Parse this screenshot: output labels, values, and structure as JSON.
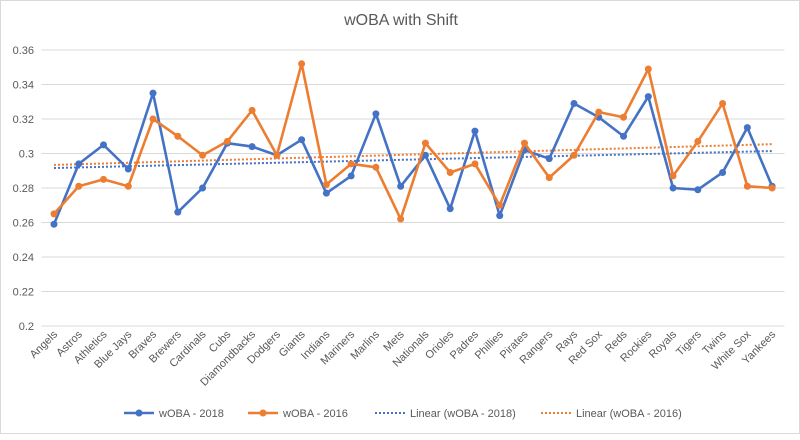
{
  "chart_data": {
    "type": "line",
    "title": "wOBA with Shift",
    "xlabel": "",
    "ylabel": "",
    "ylim": [
      0.2,
      0.36
    ],
    "yticks": [
      "0.2",
      "0.22",
      "0.24",
      "0.26",
      "0.28",
      "0.3",
      "0.32",
      "0.34",
      "0.36"
    ],
    "grid": true,
    "legend_position": "bottom",
    "categories": [
      "Angels",
      "Astros",
      "Athletics",
      "Blue Jays",
      "Braves",
      "Brewers",
      "Cardinals",
      "Cubs",
      "Diamondbacks",
      "Dodgers",
      "Giants",
      "Indians",
      "Mariners",
      "Marlins",
      "Mets",
      "Nationals",
      "Orioles",
      "Padres",
      "Phillies",
      "Pirates",
      "Rangers",
      "Rays",
      "Red Sox",
      "Reds",
      "Rockies",
      "Royals",
      "Tigers",
      "Twins",
      "White Sox",
      "Yankees"
    ],
    "series": [
      {
        "name": "wOBA - 2018",
        "color": "#4472c4",
        "values": [
          0.259,
          0.294,
          0.305,
          0.291,
          0.335,
          0.266,
          0.28,
          0.306,
          0.304,
          0.299,
          0.308,
          0.277,
          0.287,
          0.323,
          0.281,
          0.299,
          0.268,
          0.313,
          0.264,
          0.302,
          0.297,
          0.329,
          0.321,
          0.31,
          0.333,
          0.28,
          0.279,
          0.289,
          0.315,
          0.281
        ]
      },
      {
        "name": "wOBA - 2016",
        "color": "#ed7d31",
        "values": [
          0.265,
          0.281,
          0.285,
          0.281,
          0.32,
          0.31,
          0.299,
          0.307,
          0.325,
          0.299,
          0.352,
          0.282,
          0.294,
          0.292,
          0.262,
          0.306,
          0.289,
          0.294,
          0.27,
          0.306,
          0.286,
          0.299,
          0.324,
          0.321,
          0.349,
          0.287,
          0.307,
          0.329,
          0.281,
          0.28
        ]
      }
    ],
    "trendlines": [
      {
        "name": "Linear (wOBA - 2018)",
        "of": "wOBA - 2018",
        "type": "linear",
        "color": "#4472c4"
      },
      {
        "name": "Linear (wOBA - 2016)",
        "of": "wOBA - 2016",
        "type": "linear",
        "color": "#ed7d31"
      }
    ]
  }
}
